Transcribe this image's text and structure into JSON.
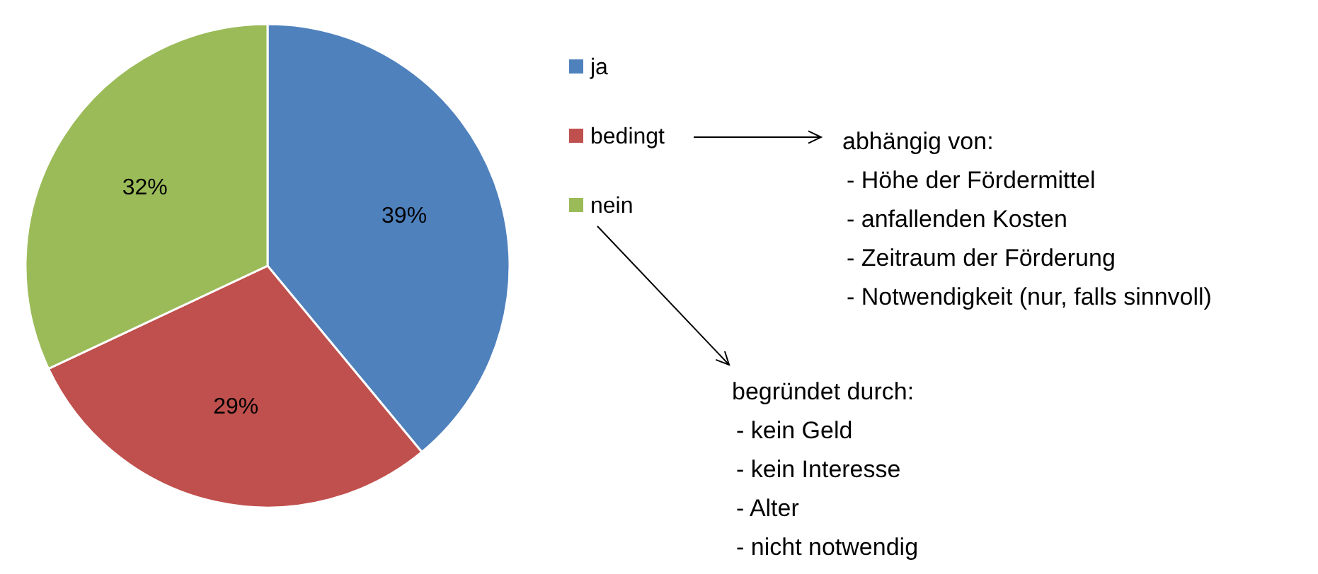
{
  "chart_data": {
    "type": "pie",
    "categories": [
      "ja",
      "bedingt",
      "nein"
    ],
    "values": [
      39,
      29,
      32
    ],
    "colors": [
      "#4f81bd",
      "#c0504d",
      "#9bbb59"
    ],
    "value_labels": [
      "39%",
      "29%",
      "32%"
    ],
    "legend": "right",
    "annotations": [
      "abhängig von:\n- Höhe der Fördermittel\n- anfallenden Kosten\n- Zeitraum der Förderung\n- Notwendigkeit (nur, falls sinnvoll)",
      "begründet durch:\n- kein Geld\n- kein Interesse\n- Alter\n- nicht notwendig"
    ]
  }
}
